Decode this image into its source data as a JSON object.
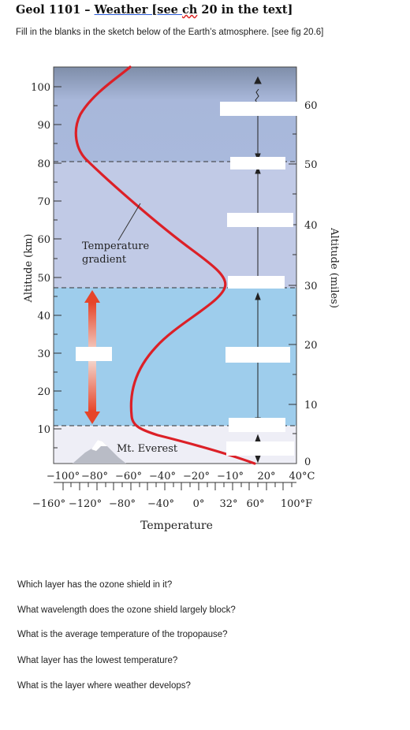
{
  "header": {
    "title_prefix": "Geol 1101 – ",
    "title_link": "Weather  [see ",
    "title_squiggle": "ch",
    "title_suffix": " 20 in the text]",
    "instructions": "Fill in the blanks in the sketch below of the Earth’s atmosphere.  [see fig 20.6]"
  },
  "diagram": {
    "left_axis_label": "Altitude (km)",
    "right_axis_label": "Altitude (miles)",
    "km_ticks": [
      "100",
      "90",
      "80",
      "70",
      "60",
      "50",
      "40",
      "30",
      "20",
      "10"
    ],
    "mile_ticks": [
      "60",
      "50",
      "40",
      "30",
      "20",
      "10",
      "0"
    ],
    "celsius_ticks": [
      "−100°",
      "−80°",
      "−60°",
      "−40°",
      "−20°",
      "−10°",
      "20°",
      "40°C"
    ],
    "fahrenheit_ticks": [
      "−160°",
      "−120°",
      "−80°",
      "−40°",
      "0°",
      "32°",
      "60°",
      "100°F"
    ],
    "x_axis_label": "Temperature",
    "gradient_label_1": "Temperature",
    "gradient_label_2": "gradient",
    "mountain_label": "Mt. Everest",
    "colors": {
      "thermosphere": "#a9b9dc",
      "mesosphere": "#c2cbe6",
      "stratosphere": "#c5cde8",
      "troposphere": "#9dcdec",
      "ground": "#eeeef6",
      "curve": "#dc2027"
    }
  },
  "questions": [
    "Which layer has the ozone shield in it?",
    "What wavelength does the ozone shield largely block?",
    "What is the average temperature of the tropopause?",
    "What layer has the lowest temperature?",
    "What is the layer where weather develops?"
  ]
}
